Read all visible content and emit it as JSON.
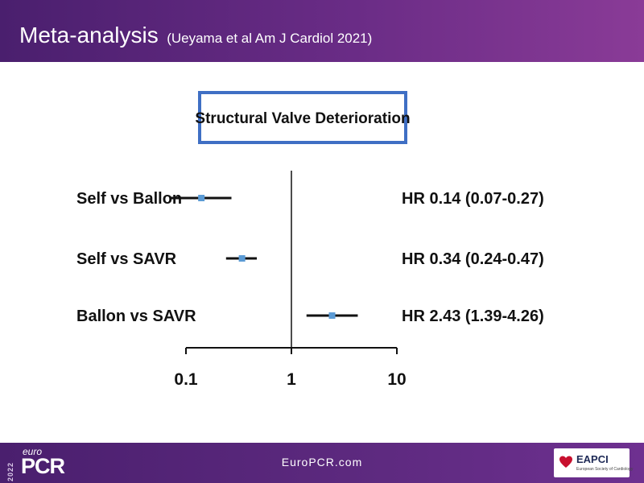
{
  "slide": {
    "title": "Meta-analysis",
    "citation": "(Ueyama et al Am J Cardiol 2021)"
  },
  "footer": {
    "url": "EuroPCR.com",
    "year": "2022",
    "brand_prefix": "euro",
    "brand_name": "PCR",
    "partner_name": "EAPCI",
    "partner_tagline": "European Society of Cardiology"
  },
  "colors": {
    "header_purple": "#5a2a7e",
    "frame_blue": "#3f6fc4",
    "marker_blue": "#5b9bd5"
  },
  "chart_data": {
    "type": "forest",
    "title": "Structural Valve Deterioration",
    "scale": "log",
    "xlim": [
      0.1,
      10
    ],
    "xticks": [
      0.1,
      1,
      10
    ],
    "tick_labels": [
      "0.1",
      "1",
      "10"
    ],
    "reference_line": 1,
    "rows": [
      {
        "label": "Self vs Ballon",
        "hr": 0.14,
        "ci_low": 0.07,
        "ci_high": 0.27,
        "text": "HR 0.14 (0.07-0.27)"
      },
      {
        "label": "Self vs SAVR",
        "hr": 0.34,
        "ci_low": 0.24,
        "ci_high": 0.47,
        "text": "HR 0.34 (0.24-0.47)"
      },
      {
        "label": "Ballon vs SAVR",
        "hr": 2.43,
        "ci_low": 1.39,
        "ci_high": 4.26,
        "text": "HR 2.43 (1.39-4.26)"
      }
    ]
  }
}
